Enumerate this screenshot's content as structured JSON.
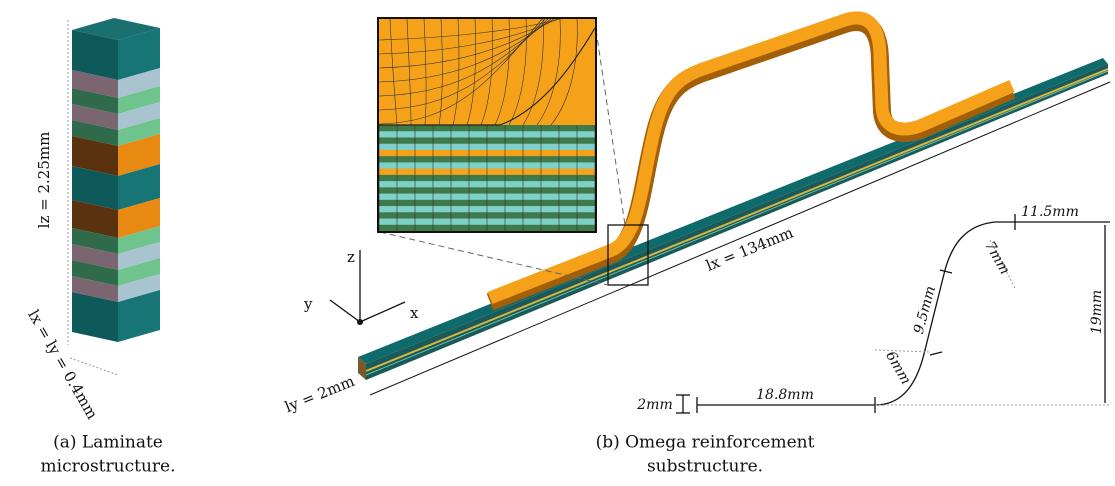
{
  "panel_a": {
    "lz_label": "lz = 2.25mm",
    "lxy_label": "lx = ly = 0.4mm",
    "caption": [
      "(a) Laminate",
      "microstructure."
    ]
  },
  "panel_b": {
    "axes": {
      "z": "z",
      "y": "y",
      "x": "x"
    },
    "lx_label": "lx = 134mm",
    "ly_label": "ly = 2mm",
    "dimensions": {
      "top_flat": "11.5mm",
      "upper_radius": "7mm",
      "slope": "9.5mm",
      "height": "19mm",
      "lower_radius": "6mm",
      "thickness": "2mm",
      "bottom_flat": "18.8mm"
    },
    "caption": [
      "(b) Omega reinforcement",
      "substructure."
    ]
  }
}
